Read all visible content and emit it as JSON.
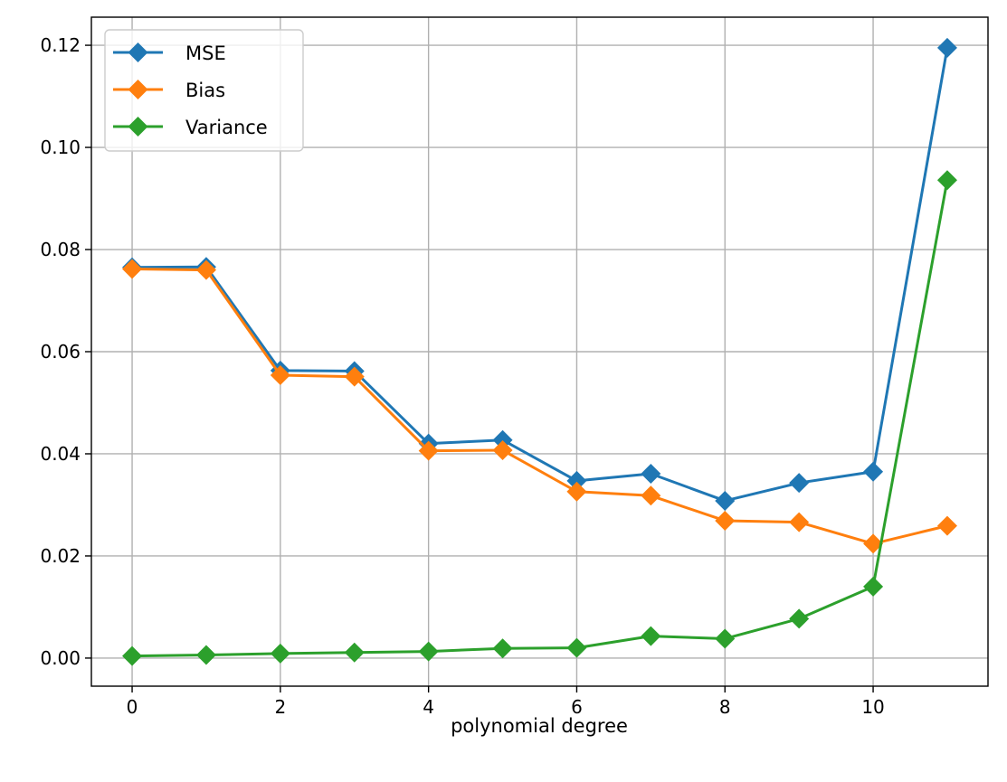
{
  "chart_data": {
    "type": "line",
    "title": "",
    "xlabel": "polynomial degree",
    "ylabel": "",
    "x": [
      0,
      1,
      2,
      3,
      4,
      5,
      6,
      7,
      8,
      9,
      10,
      11
    ],
    "xlim": [
      -0.55,
      11.55
    ],
    "ylim": [
      -0.0055,
      0.1255
    ],
    "xticks": [
      0,
      2,
      4,
      6,
      8,
      10
    ],
    "xtick_labels": [
      "0",
      "2",
      "4",
      "6",
      "8",
      "10"
    ],
    "yticks": [
      0.0,
      0.02,
      0.04,
      0.06,
      0.08,
      0.1,
      0.12
    ],
    "ytick_labels": [
      "0.00",
      "0.02",
      "0.04",
      "0.06",
      "0.08",
      "0.10",
      "0.12"
    ],
    "grid": true,
    "legend_position": "top-left",
    "marker": "diamond",
    "series": [
      {
        "name": "MSE",
        "color": "#1f77b4",
        "values": [
          0.0765,
          0.0766,
          0.0563,
          0.0562,
          0.042,
          0.0427,
          0.0347,
          0.0361,
          0.0308,
          0.0343,
          0.0365,
          0.1195
        ]
      },
      {
        "name": "Bias",
        "color": "#ff7f0e",
        "values": [
          0.0762,
          0.076,
          0.0554,
          0.0551,
          0.0406,
          0.0407,
          0.0326,
          0.0318,
          0.0269,
          0.0266,
          0.0224,
          0.0259
        ]
      },
      {
        "name": "Variance",
        "color": "#2ca02c",
        "values": [
          0.0004,
          0.0006,
          0.0009,
          0.0011,
          0.0013,
          0.0019,
          0.002,
          0.0043,
          0.0038,
          0.0077,
          0.014,
          0.0936
        ]
      }
    ]
  }
}
